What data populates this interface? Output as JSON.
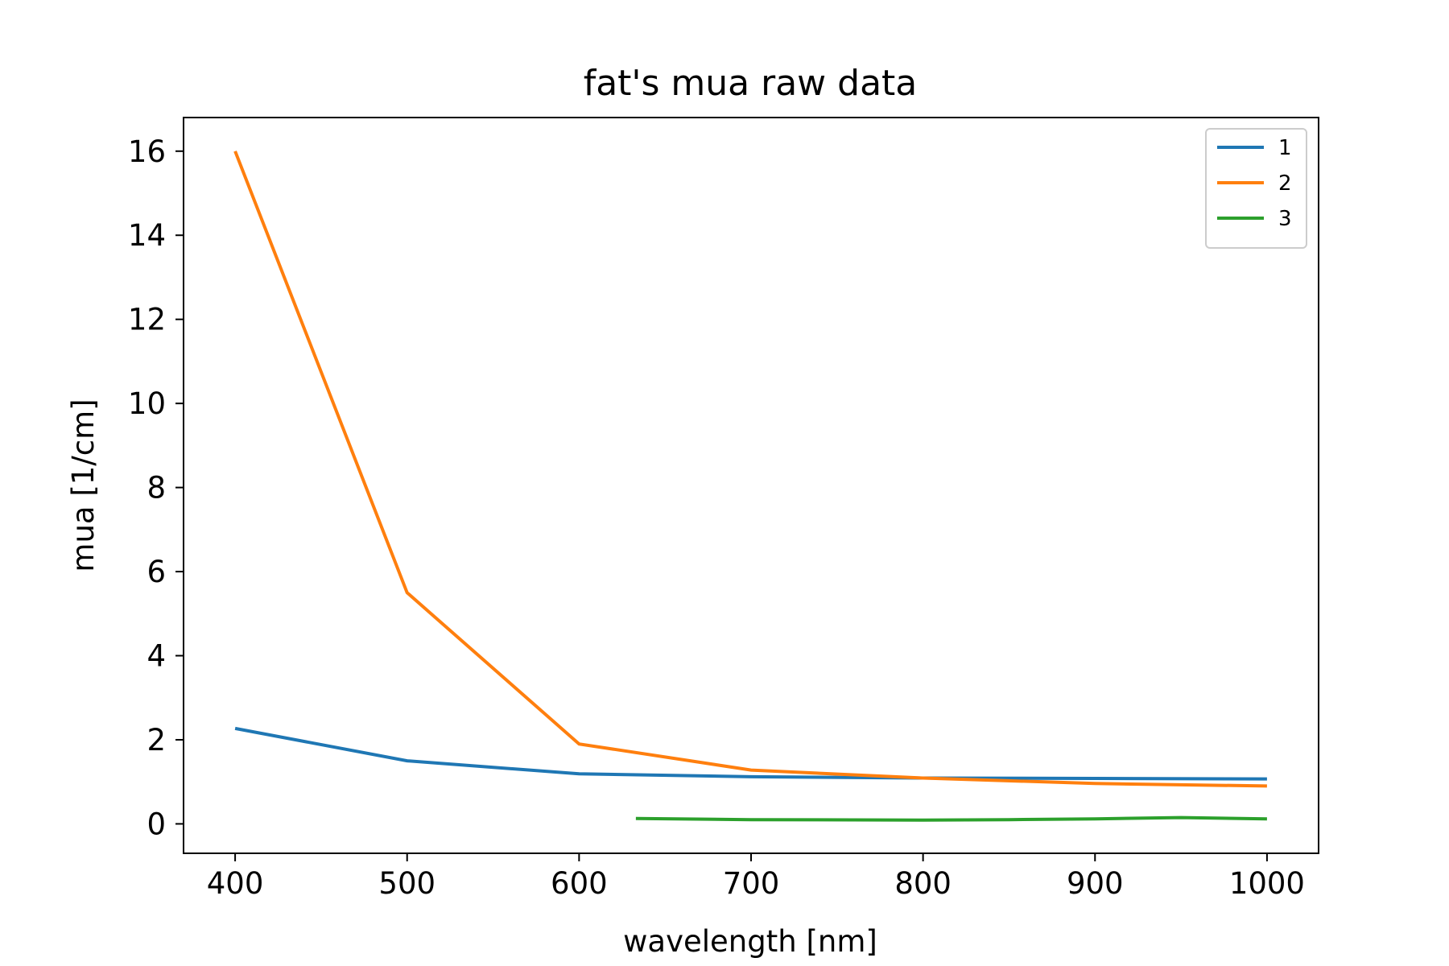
{
  "chart_data": {
    "type": "line",
    "title": "fat's mua raw data",
    "xlabel": "wavelength [nm]",
    "ylabel": "mua [1/cm]",
    "xlim": [
      370,
      1030
    ],
    "ylim": [
      -0.7,
      16.8
    ],
    "xticks": [
      400,
      500,
      600,
      700,
      800,
      900,
      1000
    ],
    "yticks": [
      0,
      2,
      4,
      6,
      8,
      10,
      12,
      14,
      16
    ],
    "grid": false,
    "legend_position": "top-right",
    "series": [
      {
        "name": "1",
        "color": "#1f77b4",
        "points": [
          [
            400,
            2.27
          ],
          [
            500,
            1.5
          ],
          [
            600,
            1.19
          ],
          [
            700,
            1.12
          ],
          [
            800,
            1.09
          ],
          [
            900,
            1.08
          ],
          [
            1000,
            1.07
          ]
        ]
      },
      {
        "name": "2",
        "color": "#ff7f0e",
        "points": [
          [
            400,
            16.0
          ],
          [
            500,
            5.5
          ],
          [
            600,
            1.9
          ],
          [
            700,
            1.28
          ],
          [
            800,
            1.09
          ],
          [
            900,
            0.96
          ],
          [
            1000,
            0.9
          ]
        ]
      },
      {
        "name": "3",
        "color": "#2ca02c",
        "points": [
          [
            633,
            0.13
          ],
          [
            700,
            0.1
          ],
          [
            800,
            0.09
          ],
          [
            850,
            0.1
          ],
          [
            900,
            0.12
          ],
          [
            950,
            0.15
          ],
          [
            1000,
            0.12
          ]
        ]
      }
    ]
  }
}
